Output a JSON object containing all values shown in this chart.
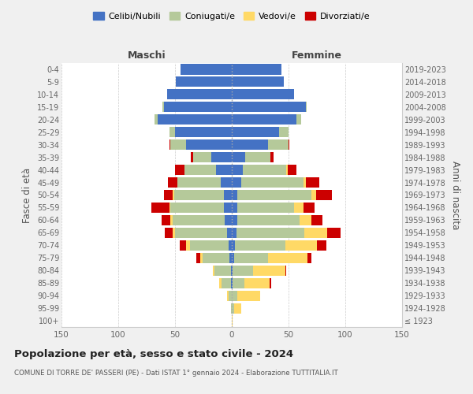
{
  "age_groups": [
    "100+",
    "95-99",
    "90-94",
    "85-89",
    "80-84",
    "75-79",
    "70-74",
    "65-69",
    "60-64",
    "55-59",
    "50-54",
    "45-49",
    "40-44",
    "35-39",
    "30-34",
    "25-29",
    "20-24",
    "15-19",
    "10-14",
    "5-9",
    "0-4"
  ],
  "birth_years": [
    "≤ 1923",
    "1924-1928",
    "1929-1933",
    "1934-1938",
    "1939-1943",
    "1944-1948",
    "1949-1953",
    "1954-1958",
    "1959-1963",
    "1964-1968",
    "1969-1973",
    "1974-1978",
    "1979-1983",
    "1984-1988",
    "1989-1993",
    "1994-1998",
    "1999-2003",
    "2004-2008",
    "2009-2013",
    "2014-2018",
    "2019-2023"
  ],
  "male": {
    "celibi": [
      0,
      0,
      0,
      1,
      1,
      2,
      3,
      4,
      6,
      7,
      7,
      10,
      14,
      18,
      40,
      50,
      65,
      60,
      57,
      49,
      45
    ],
    "coniugati": [
      0,
      1,
      3,
      8,
      14,
      24,
      34,
      46,
      46,
      47,
      44,
      38,
      28,
      16,
      14,
      5,
      3,
      1,
      0,
      0,
      0
    ],
    "vedovi": [
      0,
      0,
      1,
      2,
      2,
      2,
      3,
      2,
      2,
      1,
      1,
      0,
      0,
      0,
      0,
      0,
      0,
      0,
      0,
      0,
      0
    ],
    "divorziati": [
      0,
      0,
      0,
      0,
      0,
      3,
      6,
      7,
      8,
      16,
      8,
      8,
      8,
      2,
      1,
      0,
      0,
      0,
      0,
      0,
      0
    ]
  },
  "female": {
    "nubili": [
      0,
      0,
      0,
      1,
      1,
      2,
      3,
      4,
      5,
      5,
      5,
      8,
      10,
      12,
      32,
      42,
      57,
      65,
      55,
      46,
      44
    ],
    "coniugate": [
      0,
      2,
      5,
      10,
      18,
      30,
      44,
      60,
      55,
      50,
      65,
      55,
      38,
      22,
      18,
      8,
      4,
      1,
      0,
      0,
      0
    ],
    "vedove": [
      1,
      6,
      20,
      22,
      28,
      35,
      28,
      20,
      10,
      8,
      4,
      2,
      1,
      0,
      0,
      0,
      0,
      0,
      0,
      0,
      0
    ],
    "divorziate": [
      0,
      0,
      0,
      2,
      1,
      3,
      8,
      12,
      10,
      10,
      14,
      12,
      8,
      3,
      1,
      0,
      0,
      0,
      0,
      0,
      0
    ]
  },
  "colors": {
    "celibi_nubili": "#4472c4",
    "coniugati": "#b5c99a",
    "vedovi": "#ffd966",
    "divorziati": "#cc0000"
  },
  "xlim": 150,
  "title": "Popolazione per età, sesso e stato civile - 2024",
  "subtitle": "COMUNE DI TORRE DE' PASSERI (PE) - Dati ISTAT 1° gennaio 2024 - Elaborazione TUTTITALIA.IT",
  "xlabel_left": "Maschi",
  "xlabel_right": "Femmine",
  "ylabel_left": "Fasce di età",
  "ylabel_right": "Anni di nascita",
  "bg_color": "#f0f0f0",
  "plot_bg_color": "#ffffff"
}
